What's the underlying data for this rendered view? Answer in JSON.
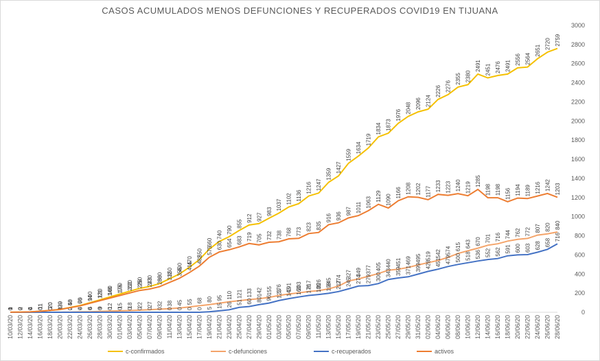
{
  "chart_data": {
    "type": "line",
    "title": "CASOS ACUMULADOS MENOS DEFUNCIONES Y RECUPERADOS COVID19 EN TIJUANA",
    "categories": [
      "10/03/20",
      "12/03/20",
      "14/03/20",
      "16/03/20",
      "18/03/20",
      "20/03/20",
      "22/03/20",
      "24/03/20",
      "26/03/20",
      "28/03/20",
      "30/03/20",
      "01/04/20",
      "03/04/20",
      "05/04/20",
      "07/04/20",
      "09/04/20",
      "11/04/20",
      "13/04/20",
      "15/04/20",
      "17/04/20",
      "19/04/20",
      "21/04/20",
      "23/04/20",
      "25/04/20",
      "27/04/20",
      "29/04/20",
      "01/05/20",
      "03/05/20",
      "05/05/20",
      "07/05/20",
      "09/05/20",
      "11/05/20",
      "13/05/20",
      "15/05/20",
      "17/05/20",
      "19/05/20",
      "21/05/20",
      "23/05/20",
      "25/05/20",
      "27/05/20",
      "29/05/20",
      "31/05/20",
      "02/06/20",
      "04/06/20",
      "06/06/20",
      "08/06/20",
      "10/06/20",
      "12/06/20",
      "14/06/20",
      "16/06/20",
      "18/06/20",
      "20/06/20",
      "22/06/20",
      "24/06/20",
      "26/06/20",
      "28/06/20"
    ],
    "series": [
      {
        "name": "c-confirmados",
        "color": "#f5c000",
        "values": [
          1,
          2,
          4,
          11,
          20,
          30,
          50,
          70,
          100,
          130,
          160,
          190,
          220,
          250,
          270,
          300,
          350,
          400,
          470,
          550,
          660,
          740,
          790,
          855,
          912,
          927,
          983,
          1037,
          1102,
          1136,
          1216,
          1247,
          1359,
          1427,
          1559,
          1634,
          1719,
          1834,
          1873,
          1976,
          2048,
          2096,
          2124,
          2226,
          2276,
          2355,
          2380,
          2491,
          2451,
          2476,
          2491,
          2556,
          2564,
          2651,
          2720,
          2759
        ]
      },
      {
        "name": "c-defunciones",
        "color": "#f4a46a",
        "values": [
          0,
          0,
          0,
          0,
          0,
          1,
          2,
          4,
          6,
          9,
          12,
          15,
          18,
          22,
          27,
          32,
          38,
          45,
          55,
          68,
          80,
          95,
          110,
          121,
          133,
          142,
          155,
          176,
          191,
          203,
          217,
          226,
          245,
          274,
          327,
          349,
          377,
          405,
          440,
          451,
          469,
          495,
          519,
          542,
          574,
          615,
          643,
          670,
          701,
          716,
          744,
          762,
          772,
          807,
          820,
          840
        ]
      },
      {
        "name": "c-recuperados",
        "color": "#4472c4",
        "values": [
          0,
          0,
          0,
          0,
          0,
          0,
          0,
          0,
          0,
          0,
          0,
          0,
          0,
          0,
          0,
          0,
          0,
          0,
          0,
          0,
          5,
          15,
          26,
          51,
          60,
          80,
          96,
          123,
          143,
          160,
          176,
          186,
          198,
          217,
          245,
          274,
          279,
          300,
          343,
          359,
          371,
          399,
          428,
          451,
          479,
          500,
          518,
          536,
          552,
          562,
          591,
          600,
          603,
          628,
          658,
          716
        ]
      },
      {
        "name": "activos",
        "color": "#ed7d31",
        "values": [
          1,
          2,
          4,
          11,
          20,
          29,
          48,
          66,
          94,
          121,
          148,
          175,
          202,
          228,
          243,
          268,
          312,
          355,
          415,
          482,
          575,
          630,
          654,
          683,
          719,
          705,
          732,
          738,
          768,
          773,
          823,
          835,
          916,
          936,
          987,
          1011,
          1063,
          1129,
          1090,
          1166,
          1208,
          1202,
          1177,
          1233,
          1223,
          1240,
          1219,
          1285,
          1198,
          1198,
          1156,
          1194,
          1189,
          1216,
          1242,
          1203
        ]
      }
    ],
    "ylim": [
      0,
      3000
    ],
    "yticks": [
      0,
      200,
      400,
      600,
      800,
      1000,
      1200,
      1400,
      1600,
      1800,
      2000,
      2200,
      2400,
      2600,
      2800,
      3000
    ],
    "y_axis_side": "right",
    "legend": "bottom",
    "grid": false
  }
}
